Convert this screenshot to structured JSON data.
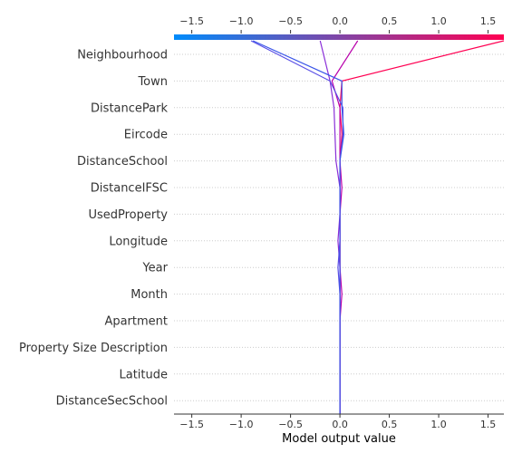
{
  "chart_data": {
    "type": "line",
    "title": "",
    "xlabel": "Model output value",
    "ylabel": "",
    "xlim": [
      -1.68,
      1.66
    ],
    "ticks": [
      -1.5,
      -1.0,
      -0.5,
      0.0,
      0.5,
      1.0,
      1.5
    ],
    "tick_labels": [
      "−1.5",
      "−1.0",
      "−0.5",
      "0.0",
      "0.5",
      "1.0",
      "1.5"
    ],
    "grid": "horizontal dotted",
    "colorbar": {
      "from": "#008bfb",
      "to": "#ff0052"
    },
    "features": [
      "Neighbourhood",
      "Town",
      "DistancePark",
      "Eircode",
      "DistanceSchool",
      "DistanceIFSC",
      "UsedProperty",
      "Longitude",
      "Year",
      "Month",
      "Apartment",
      "Property Size Description",
      "Latitude",
      "DistanceSecSchool"
    ],
    "series": [
      {
        "color": "#ff0052",
        "x": [
          0.0,
          0.0,
          0.0,
          0.0,
          0.0,
          0.0,
          0.0,
          0.0,
          0.0,
          0.0,
          0.0,
          0.02,
          0.0,
          0.02,
          1.66
        ]
      },
      {
        "color": "#b800ab",
        "x": [
          0.0,
          0.0,
          0.0,
          0.0,
          0.0,
          0.02,
          0.0,
          0.0,
          0.0,
          0.02,
          0.0,
          0.0,
          0.0,
          -0.08,
          0.18
        ]
      },
      {
        "color": "#8a2fd8",
        "x": [
          0.0,
          0.0,
          0.0,
          0.0,
          0.0,
          0.0,
          0.0,
          -0.02,
          0.0,
          0.0,
          -0.04,
          -0.05,
          -0.06,
          -0.1,
          -0.2
        ]
      },
      {
        "color": "#5a4fe6",
        "x": [
          0.0,
          0.0,
          0.0,
          0.0,
          0.0,
          0.0,
          -0.02,
          0.0,
          0.0,
          0.0,
          0.0,
          0.03,
          0.03,
          -0.1,
          -0.9
        ]
      },
      {
        "color": "#3a55e8",
        "x": [
          0.0,
          0.0,
          0.0,
          0.0,
          0.0,
          0.0,
          0.0,
          0.0,
          0.0,
          0.0,
          0.0,
          0.04,
          0.02,
          0.02,
          -0.88
        ]
      }
    ]
  }
}
